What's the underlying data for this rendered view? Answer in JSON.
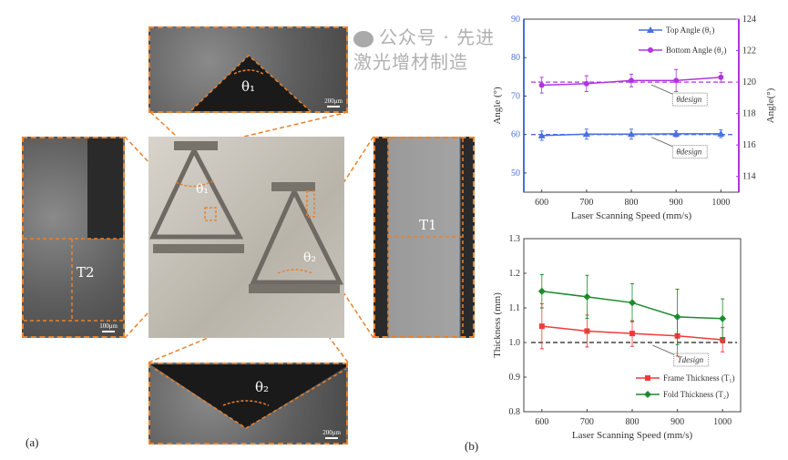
{
  "panel_a": {
    "label": "(a)",
    "top_inset": {
      "symbol": "θ₁",
      "scale": "200μm"
    },
    "bottom_inset": {
      "symbol": "θ₂",
      "scale": "200μm"
    },
    "left_inset": {
      "symbol": "T2",
      "scale": "100μm"
    },
    "right_inset": {
      "symbol": "T1"
    },
    "center_photo": {
      "theta1": "θ₁",
      "theta2": "θ₂"
    }
  },
  "panel_b": {
    "label": "(b)"
  },
  "watermark": "公众号 · 先进激光增材制造",
  "colors": {
    "orange": "#e8822e",
    "blue": "#4a6fe0",
    "purple": "#b035e0",
    "red": "#f03a3a",
    "green": "#1e8a2e"
  },
  "chart_data": [
    {
      "type": "line",
      "title": "",
      "xlabel": "Laser Scanning Speed (mm/s)",
      "ylabel": "Angle (°)",
      "y2label": "Angle(°)",
      "x": [
        600,
        700,
        800,
        900,
        1000
      ],
      "xlim": [
        560,
        1040
      ],
      "ylim": [
        45,
        90
      ],
      "y2lim": [
        113,
        124
      ],
      "xticks": [
        "600",
        "700",
        "800",
        "900",
        "1000"
      ],
      "yticks": [
        "50",
        "60",
        "70",
        "80",
        "90"
      ],
      "y2ticks": [
        "114",
        "116",
        "118",
        "120",
        "122",
        "124"
      ],
      "legend_position": "top-right",
      "series": [
        {
          "name": "Top Angle (θ₁)",
          "axis": "left",
          "color": "#4a6fe0",
          "marker": "triangle",
          "values": [
            59.7,
            60.1,
            60.1,
            60.2,
            60.2
          ],
          "errors": [
            1.2,
            1.3,
            1.3,
            0.8,
            1.0
          ]
        },
        {
          "name": "Bottom Angle (θ₂)",
          "axis": "right",
          "color": "#b035e0",
          "marker": "circle",
          "values": [
            119.8,
            119.9,
            120.1,
            120.1,
            120.3
          ],
          "errors": [
            0.5,
            0.5,
            0.4,
            0.7,
            0.3
          ]
        }
      ],
      "reference_lines": [
        {
          "axis": "left",
          "value": 60,
          "label": "θdesign",
          "color": "#4a6fe0"
        },
        {
          "axis": "right",
          "value": 120,
          "label": "θdesign",
          "color": "#b035e0"
        }
      ]
    },
    {
      "type": "line",
      "title": "",
      "xlabel": "Laser Scanning Speed (mm/s)",
      "ylabel": "Thickness (mm)",
      "x": [
        600,
        700,
        800,
        900,
        1000
      ],
      "xlim": [
        560,
        1040
      ],
      "ylim": [
        0.8,
        1.3
      ],
      "xticks": [
        "600",
        "700",
        "800",
        "900",
        "1000"
      ],
      "yticks": [
        "0.8",
        "0.9",
        "1.0",
        "1.1",
        "1.2",
        "1.3"
      ],
      "legend_position": "bottom-right",
      "series": [
        {
          "name": "Frame Thickness (T₁)",
          "color": "#f03a3a",
          "marker": "square",
          "values": [
            1.047,
            1.033,
            1.026,
            1.019,
            1.008
          ],
          "errors": [
            0.065,
            0.046,
            0.037,
            0.058,
            0.035
          ]
        },
        {
          "name": "Fold Thickness (T₂)",
          "color": "#1e8a2e",
          "marker": "diamond",
          "values": [
            1.148,
            1.132,
            1.115,
            1.074,
            1.069
          ],
          "errors": [
            0.048,
            0.062,
            0.055,
            0.08,
            0.057
          ]
        }
      ],
      "reference_lines": [
        {
          "value": 1.0,
          "label": "Tdesign",
          "color": "#222222"
        }
      ]
    }
  ]
}
